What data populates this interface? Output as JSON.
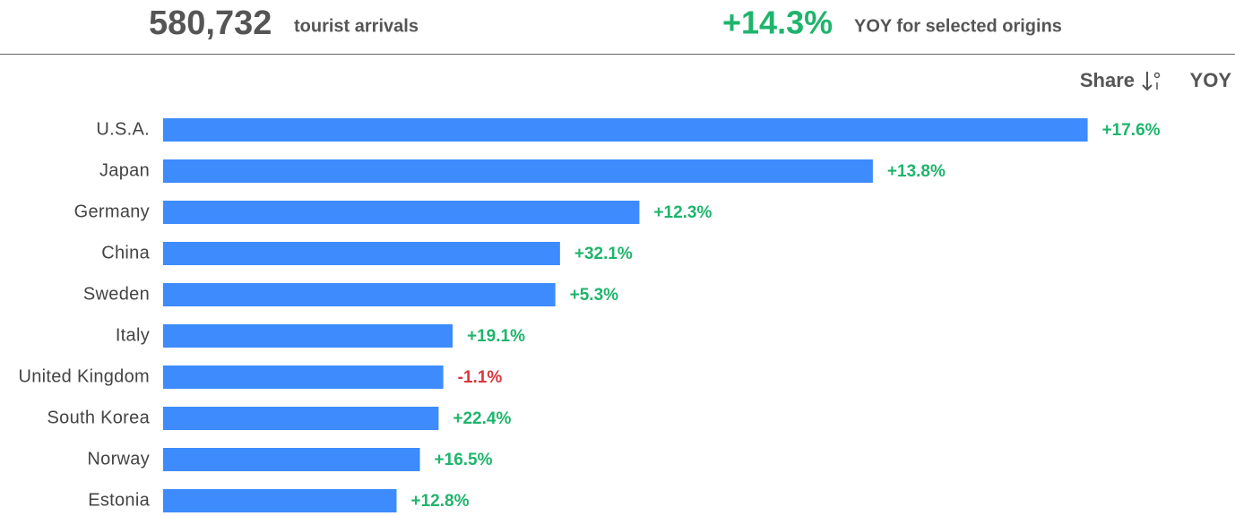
{
  "header": {
    "total": "580,732",
    "total_label": "tourist arrivals",
    "yoy": "+14.3%",
    "yoy_label": "YOY for selected origins"
  },
  "chart_data": {
    "type": "bar",
    "orientation": "horizontal",
    "categories": [
      "U.S.A.",
      "Japan",
      "Germany",
      "China",
      "Sweden",
      "Italy",
      "United Kingdom",
      "South Korea",
      "Norway",
      "Estonia"
    ],
    "xlim": [
      0,
      20
    ],
    "series": [
      {
        "name": "Share",
        "color": "#3d8bfd",
        "values": [
          19.8,
          15.2,
          10.2,
          8.5,
          8.4,
          6.2,
          6.0,
          5.9,
          5.5,
          5.0
        ]
      },
      {
        "name": "YOY",
        "positive_color": "#1fb46c",
        "negative_color": "#d9363e",
        "values": [
          17.6,
          13.8,
          12.3,
          32.1,
          5.3,
          19.1,
          -1.1,
          22.4,
          16.5,
          12.8
        ],
        "value_labels": [
          "+17.6%",
          "+13.8%",
          "+12.3%",
          "+32.1%",
          "+5.3%",
          "+19.1%",
          "-1.1%",
          "+22.4%",
          "+16.5%",
          "+12.8%"
        ]
      }
    ]
  }
}
